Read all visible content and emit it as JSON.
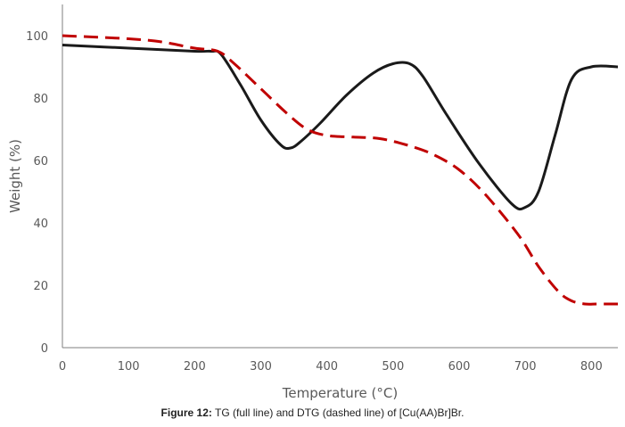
{
  "chart_data": {
    "type": "line",
    "title": "",
    "xlabel": "Temperature (°C)",
    "ylabel": "Weight (%)",
    "xlim": [
      0,
      840
    ],
    "ylim": [
      0,
      110
    ],
    "xticks": [
      0,
      100,
      200,
      300,
      400,
      500,
      600,
      700,
      800
    ],
    "yticks": [
      0,
      20,
      40,
      60,
      80,
      100
    ],
    "xtick_labels": [
      "0",
      "100",
      "200",
      "300",
      "400",
      "500",
      "600",
      "700",
      "800"
    ],
    "ytick_labels": [
      "0",
      "20",
      "40",
      "60",
      "80",
      "100"
    ],
    "grid": false,
    "legend": "none",
    "series": [
      {
        "name": "TG (full line)",
        "style": "solid",
        "color": "#1a1a1a",
        "x": [
          0,
          100,
          200,
          225,
          240,
          270,
          300,
          330,
          345,
          360,
          390,
          430,
          470,
          500,
          525,
          545,
          580,
          630,
          680,
          700,
          720,
          745,
          770,
          800,
          840
        ],
        "y": [
          97,
          96,
          95,
          95,
          94,
          84,
          73,
          65,
          64,
          66,
          72,
          81,
          88,
          91,
          91,
          87,
          75,
          59,
          46,
          45,
          50,
          68,
          86,
          90,
          90
        ]
      },
      {
        "name": "DTG (dashed line)",
        "style": "dashed",
        "color": "#c00000",
        "x": [
          0,
          100,
          150,
          200,
          235,
          260,
          300,
          340,
          370,
          400,
          440,
          480,
          520,
          560,
          600,
          640,
          690,
          720,
          750,
          770,
          790,
          810,
          840
        ],
        "y": [
          100,
          99,
          98,
          96,
          95,
          91,
          83,
          75,
          70,
          68,
          67.5,
          67,
          65,
          62,
          57,
          49,
          36,
          26,
          18,
          15,
          14,
          14,
          14
        ]
      }
    ]
  },
  "caption": {
    "label": "Figure 12:",
    "text": " TG (full line) and DTG (dashed line) of [Cu(AA)Br]Br."
  }
}
